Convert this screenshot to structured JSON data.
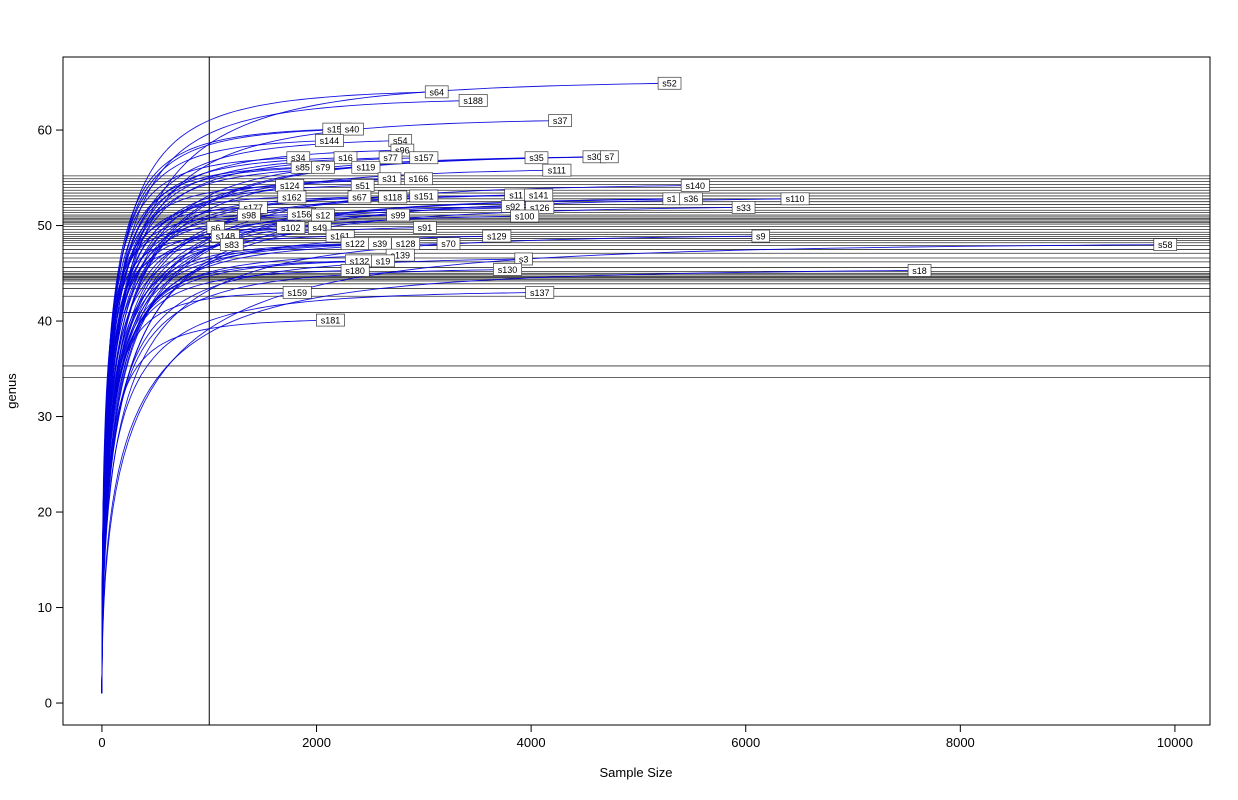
{
  "figure": {
    "background": "#ffffff"
  },
  "chart_data": {
    "type": "line",
    "title": "",
    "subtitle": "",
    "xlabel": "Sample Size",
    "ylabel": "genus",
    "xlim": [
      -363,
      10327
    ],
    "ylim": [
      -2.3,
      67.65
    ],
    "x_ticks": [
      0,
      2000,
      4000,
      6000,
      8000,
      10000
    ],
    "y_ticks": [
      0,
      10,
      20,
      30,
      40,
      50,
      60
    ],
    "grid": false,
    "legend": "none",
    "curve_color": "#0000DD",
    "box_color": "#000000",
    "reference_lines": {
      "vertical_x": 1000,
      "horizontal_y": [
        34.1,
        35.3,
        40.9,
        42.6,
        43.4,
        43.9,
        44.2,
        44.35,
        44.5,
        44.6,
        44.7,
        44.85,
        45.0,
        45.2,
        45.6,
        46.2,
        46.6,
        47.1,
        47.5,
        47.9,
        48.2,
        48.45,
        48.65,
        48.85,
        49.05,
        49.3,
        49.6,
        49.9,
        50.15,
        50.3,
        50.45,
        50.6,
        50.75,
        50.9,
        51.1,
        51.35,
        51.6,
        51.9,
        52.2,
        52.5,
        52.8,
        53.1,
        53.4,
        53.7,
        54.0,
        54.3,
        54.6,
        54.9,
        55.2
      ]
    },
    "series": [
      {
        "label": "s52",
        "end_x": 5290,
        "end_y": 64.9
      },
      {
        "label": "s64",
        "end_x": 3120,
        "end_y": 64.0
      },
      {
        "label": "s188",
        "end_x": 3460,
        "end_y": 63.1
      },
      {
        "label": "s37",
        "end_x": 4270,
        "end_y": 61.0
      },
      {
        "label": "s155",
        "end_x": 2190,
        "end_y": 60.1
      },
      {
        "label": "s40",
        "end_x": 2330,
        "end_y": 60.1
      },
      {
        "label": "s144",
        "end_x": 2120,
        "end_y": 58.9
      },
      {
        "label": "s54",
        "end_x": 2780,
        "end_y": 58.9
      },
      {
        "label": "s96",
        "end_x": 2800,
        "end_y": 57.9
      },
      {
        "label": "s34",
        "end_x": 1830,
        "end_y": 57.1
      },
      {
        "label": "s16",
        "end_x": 2270,
        "end_y": 57.1
      },
      {
        "label": "s77",
        "end_x": 2690,
        "end_y": 57.1
      },
      {
        "label": "s157",
        "end_x": 3000,
        "end_y": 57.1
      },
      {
        "label": "s35",
        "end_x": 4050,
        "end_y": 57.1
      },
      {
        "label": "s30",
        "end_x": 4590,
        "end_y": 57.2
      },
      {
        "label": "s7",
        "end_x": 4730,
        "end_y": 57.2
      },
      {
        "label": "s85",
        "end_x": 1870,
        "end_y": 56.1
      },
      {
        "label": "s79",
        "end_x": 2060,
        "end_y": 56.1
      },
      {
        "label": "s119",
        "end_x": 2460,
        "end_y": 56.1
      },
      {
        "label": "s111",
        "end_x": 4240,
        "end_y": 55.8
      },
      {
        "label": "s31",
        "end_x": 2680,
        "end_y": 54.9
      },
      {
        "label": "s166",
        "end_x": 2950,
        "end_y": 54.9
      },
      {
        "label": "s124",
        "end_x": 1750,
        "end_y": 54.2
      },
      {
        "label": "s51",
        "end_x": 2430,
        "end_y": 54.2
      },
      {
        "label": "s140",
        "end_x": 5530,
        "end_y": 54.2
      },
      {
        "label": "s162",
        "end_x": 1770,
        "end_y": 53.0
      },
      {
        "label": "s67",
        "end_x": 2400,
        "end_y": 53.0
      },
      {
        "label": "s118",
        "end_x": 2710,
        "end_y": 53.0
      },
      {
        "label": "s151",
        "end_x": 3000,
        "end_y": 53.1
      },
      {
        "label": "s11",
        "end_x": 3860,
        "end_y": 53.2
      },
      {
        "label": "s141",
        "end_x": 4070,
        "end_y": 53.2
      },
      {
        "label": "s1",
        "end_x": 5310,
        "end_y": 52.8
      },
      {
        "label": "s36",
        "end_x": 5490,
        "end_y": 52.8
      },
      {
        "label": "s110",
        "end_x": 6460,
        "end_y": 52.8
      },
      {
        "label": "s177",
        "end_x": 1410,
        "end_y": 51.9
      },
      {
        "label": "s92",
        "end_x": 3830,
        "end_y": 52.0
      },
      {
        "label": "s126",
        "end_x": 4080,
        "end_y": 51.9
      },
      {
        "label": "s33",
        "end_x": 5980,
        "end_y": 51.9
      },
      {
        "label": "s98",
        "end_x": 1370,
        "end_y": 51.1
      },
      {
        "label": "s156",
        "end_x": 1860,
        "end_y": 51.2
      },
      {
        "label": "s12",
        "end_x": 2060,
        "end_y": 51.1
      },
      {
        "label": "s99",
        "end_x": 2760,
        "end_y": 51.1
      },
      {
        "label": "s100",
        "end_x": 3940,
        "end_y": 51.0
      },
      {
        "label": "s6",
        "end_x": 1060,
        "end_y": 49.8
      },
      {
        "label": "s102",
        "end_x": 1760,
        "end_y": 49.8
      },
      {
        "label": "s49",
        "end_x": 2030,
        "end_y": 49.8
      },
      {
        "label": "s91",
        "end_x": 3010,
        "end_y": 49.8
      },
      {
        "label": "s148",
        "end_x": 1150,
        "end_y": 48.9
      },
      {
        "label": "s161",
        "end_x": 2220,
        "end_y": 48.9
      },
      {
        "label": "s129",
        "end_x": 3680,
        "end_y": 48.9
      },
      {
        "label": "s9",
        "end_x": 6140,
        "end_y": 48.9
      },
      {
        "label": "s83",
        "end_x": 1210,
        "end_y": 48.0
      },
      {
        "label": "s122",
        "end_x": 2360,
        "end_y": 48.1
      },
      {
        "label": "s39",
        "end_x": 2590,
        "end_y": 48.1
      },
      {
        "label": "s128",
        "end_x": 2830,
        "end_y": 48.1
      },
      {
        "label": "s70",
        "end_x": 3230,
        "end_y": 48.1
      },
      {
        "label": "s58",
        "end_x": 9910,
        "end_y": 48.0
      },
      {
        "label": "s139",
        "end_x": 2780,
        "end_y": 46.9
      },
      {
        "label": "s132",
        "end_x": 2400,
        "end_y": 46.3
      },
      {
        "label": "s19",
        "end_x": 2620,
        "end_y": 46.3
      },
      {
        "label": "s3",
        "end_x": 3930,
        "end_y": 46.5
      },
      {
        "label": "s180",
        "end_x": 2360,
        "end_y": 45.3
      },
      {
        "label": "s130",
        "end_x": 3780,
        "end_y": 45.4
      },
      {
        "label": "s18",
        "end_x": 7620,
        "end_y": 45.3
      },
      {
        "label": "s159",
        "end_x": 1820,
        "end_y": 43.0
      },
      {
        "label": "s137",
        "end_x": 4080,
        "end_y": 43.0
      },
      {
        "label": "s181",
        "end_x": 2130,
        "end_y": 40.1
      }
    ]
  }
}
